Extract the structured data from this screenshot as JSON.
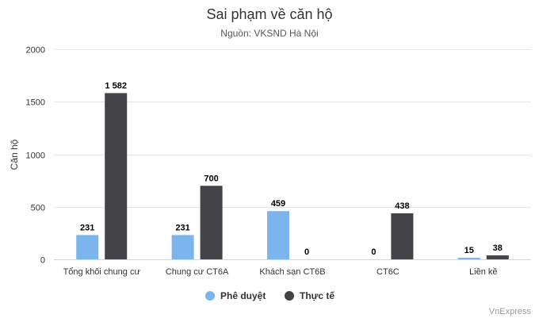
{
  "chart_data": {
    "type": "bar",
    "title": "Sai phạm về căn hộ",
    "subtitle": "Nguồn: VKSND Hà Nội",
    "xlabel": "",
    "ylabel": "Căn hộ",
    "ylim": [
      0,
      2000
    ],
    "yticks": [
      0,
      500,
      1000,
      1500,
      2000
    ],
    "categories": [
      "Tổng khối chung cư",
      "Chung cư CT6A",
      "Khách sạn CT6B",
      "CT6C",
      "Liền kề"
    ],
    "series": [
      {
        "name": "Phê duyệt",
        "color": "#7cb5ec",
        "values": [
          231,
          231,
          459,
          0,
          15
        ],
        "labels": [
          "231",
          "231",
          "459",
          "0",
          "15"
        ]
      },
      {
        "name": "Thực tế",
        "color": "#434348",
        "values": [
          1582,
          700,
          0,
          438,
          38
        ],
        "labels": [
          "1 582",
          "700",
          "0",
          "438",
          "38"
        ]
      }
    ],
    "grid": true,
    "legend": "bottom-center"
  },
  "credit": "VnExpress"
}
